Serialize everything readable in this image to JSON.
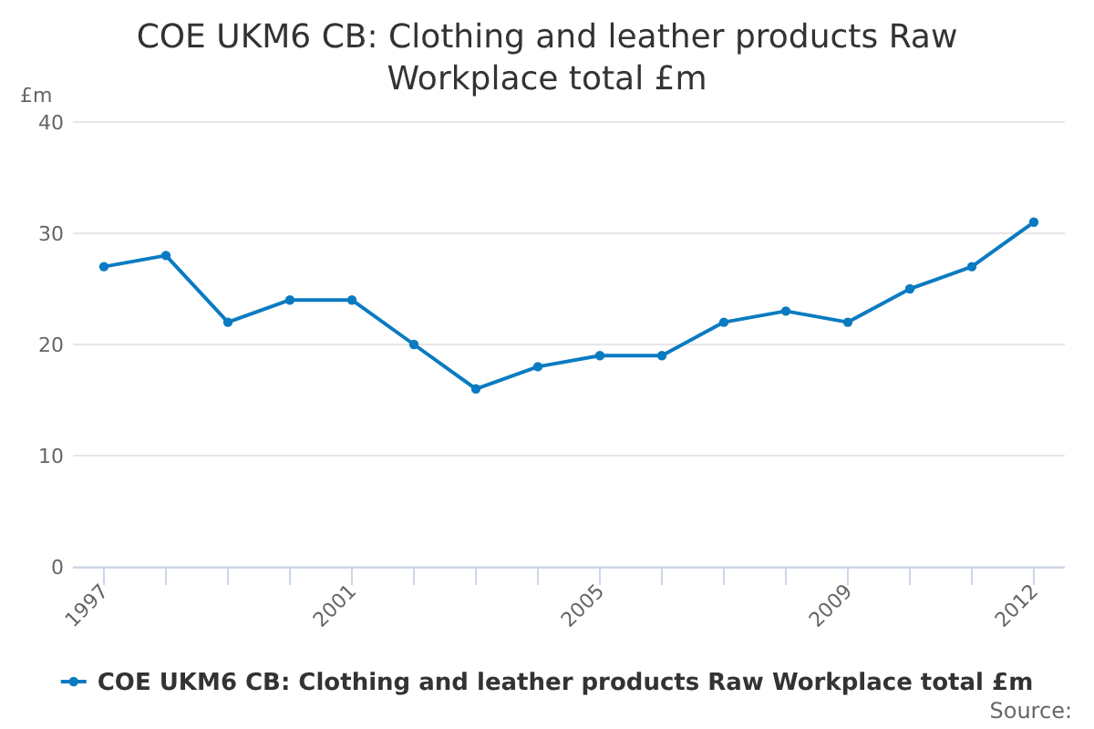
{
  "chart_data": {
    "type": "line",
    "title": "COE UKM6 CB: Clothing and leather products Raw Workplace total £m",
    "ylabel": "£m",
    "categories": [
      "1997",
      null,
      null,
      null,
      "2001",
      null,
      null,
      null,
      "2005",
      null,
      null,
      null,
      "2009",
      null,
      null,
      "2012"
    ],
    "series": [
      {
        "name": "COE UKM6 CB: Clothing and leather products Raw Workplace total £m",
        "color": "#0a7bc1",
        "values": [
          27,
          28,
          22,
          24,
          24,
          20,
          16,
          18,
          19,
          19,
          22,
          23,
          22,
          25,
          27,
          31
        ]
      }
    ],
    "ylim": [
      0,
      40
    ],
    "yticks": [
      0,
      10,
      20,
      30,
      40
    ],
    "grid": "y",
    "legend": "bottom",
    "marker": "circle",
    "annotations": [
      "Source:"
    ]
  }
}
